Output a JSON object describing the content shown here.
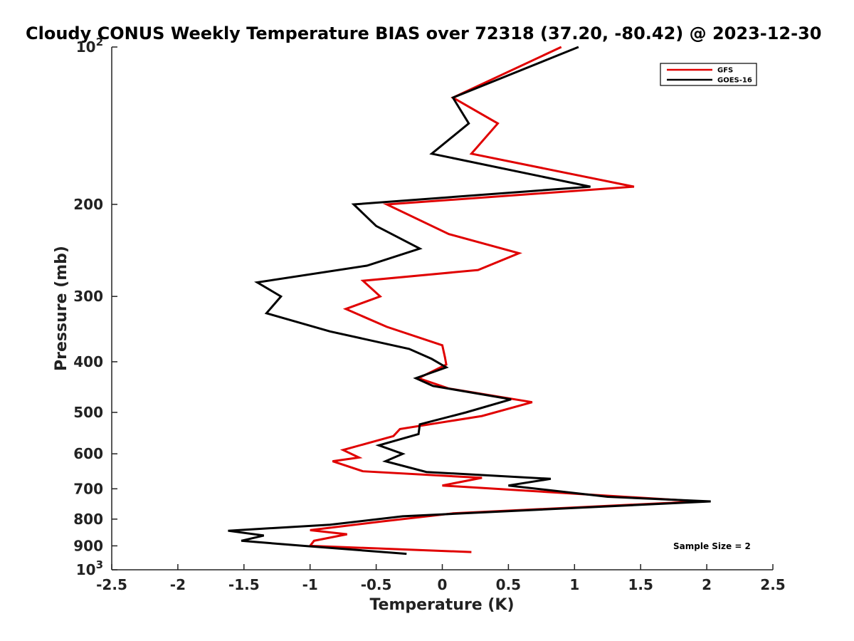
{
  "chart_data": {
    "type": "line",
    "title": "Cloudy CONUS Weekly Temperature BIAS over 72318 (37.20, -80.42) @ 2023-12-30",
    "xlabel": "Temperature (K)",
    "ylabel": "Pressure (mb)",
    "xlim": [
      -2.5,
      2.5
    ],
    "ylim": [
      100,
      1000
    ],
    "yscale": "log",
    "y_reversed": true,
    "grid": false,
    "legend_position": "top-right",
    "xticks": [
      {
        "value": -2.5,
        "label": "-2.5"
      },
      {
        "value": -2,
        "label": "-2"
      },
      {
        "value": -1.5,
        "label": "-1.5"
      },
      {
        "value": -1,
        "label": "-1"
      },
      {
        "value": -0.5,
        "label": "-0.5"
      },
      {
        "value": 0,
        "label": "0"
      },
      {
        "value": 0.5,
        "label": "0.5"
      },
      {
        "value": 1,
        "label": "1"
      },
      {
        "value": 1.5,
        "label": "1.5"
      },
      {
        "value": 2,
        "label": "2"
      },
      {
        "value": 2.5,
        "label": "2.5"
      }
    ],
    "yticks": [
      {
        "value": 100,
        "label": "10",
        "sup": "2"
      },
      {
        "value": 200,
        "label": "200",
        "sup": ""
      },
      {
        "value": 300,
        "label": "300",
        "sup": ""
      },
      {
        "value": 400,
        "label": "400",
        "sup": ""
      },
      {
        "value": 500,
        "label": "500",
        "sup": ""
      },
      {
        "value": 600,
        "label": "600",
        "sup": ""
      },
      {
        "value": 700,
        "label": "700",
        "sup": ""
      },
      {
        "value": 800,
        "label": "800",
        "sup": ""
      },
      {
        "value": 900,
        "label": "900",
        "sup": ""
      },
      {
        "value": 1000,
        "label": "10",
        "sup": "3"
      }
    ],
    "series": [
      {
        "name": "GFS",
        "color": "#e00000",
        "points": [
          [
            0.9,
            100
          ],
          [
            0.08,
            125
          ],
          [
            0.42,
            140
          ],
          [
            0.22,
            160
          ],
          [
            1.45,
            185
          ],
          [
            -0.42,
            200
          ],
          [
            0.05,
            228
          ],
          [
            0.58,
            248
          ],
          [
            0.27,
            267
          ],
          [
            -0.6,
            280
          ],
          [
            -0.47,
            300
          ],
          [
            -0.73,
            317
          ],
          [
            -0.42,
            343
          ],
          [
            0.0,
            372
          ],
          [
            0.02,
            392
          ],
          [
            0.03,
            405
          ],
          [
            -0.18,
            430
          ],
          [
            0.05,
            450
          ],
          [
            0.68,
            478
          ],
          [
            0.3,
            508
          ],
          [
            -0.32,
            538
          ],
          [
            -0.37,
            555
          ],
          [
            -0.75,
            590
          ],
          [
            -0.63,
            610
          ],
          [
            -0.83,
            620
          ],
          [
            -0.6,
            648
          ],
          [
            0.3,
            667
          ],
          [
            0.0,
            690
          ],
          [
            1.95,
            740
          ],
          [
            0.08,
            780
          ],
          [
            -0.45,
            808
          ],
          [
            -1.0,
            840
          ],
          [
            -0.72,
            855
          ],
          [
            -0.97,
            880
          ],
          [
            -1.0,
            900
          ],
          [
            0.22,
            925
          ]
        ]
      },
      {
        "name": "GOES-16",
        "color": "#000000",
        "points": [
          [
            1.03,
            100
          ],
          [
            0.08,
            125
          ],
          [
            0.2,
            140
          ],
          [
            -0.08,
            160
          ],
          [
            1.12,
            185
          ],
          [
            -0.67,
            200
          ],
          [
            -0.5,
            220
          ],
          [
            -0.17,
            243
          ],
          [
            -0.57,
            262
          ],
          [
            -1.4,
            282
          ],
          [
            -1.22,
            300
          ],
          [
            -1.33,
            323
          ],
          [
            -0.85,
            350
          ],
          [
            -0.25,
            378
          ],
          [
            -0.08,
            395
          ],
          [
            0.03,
            410
          ],
          [
            -0.2,
            430
          ],
          [
            -0.07,
            445
          ],
          [
            0.52,
            472
          ],
          [
            0.18,
            500
          ],
          [
            -0.17,
            527
          ],
          [
            -0.18,
            550
          ],
          [
            -0.48,
            578
          ],
          [
            -0.3,
            600
          ],
          [
            -0.43,
            620
          ],
          [
            -0.12,
            650
          ],
          [
            0.82,
            670
          ],
          [
            0.5,
            690
          ],
          [
            1.25,
            725
          ],
          [
            2.03,
            740
          ],
          [
            -0.3,
            790
          ],
          [
            -0.85,
            820
          ],
          [
            -1.62,
            842
          ],
          [
            -1.35,
            860
          ],
          [
            -1.52,
            880
          ],
          [
            -1.05,
            900
          ],
          [
            -0.27,
            932
          ]
        ]
      }
    ],
    "annotation": "Sample Size = 2"
  }
}
